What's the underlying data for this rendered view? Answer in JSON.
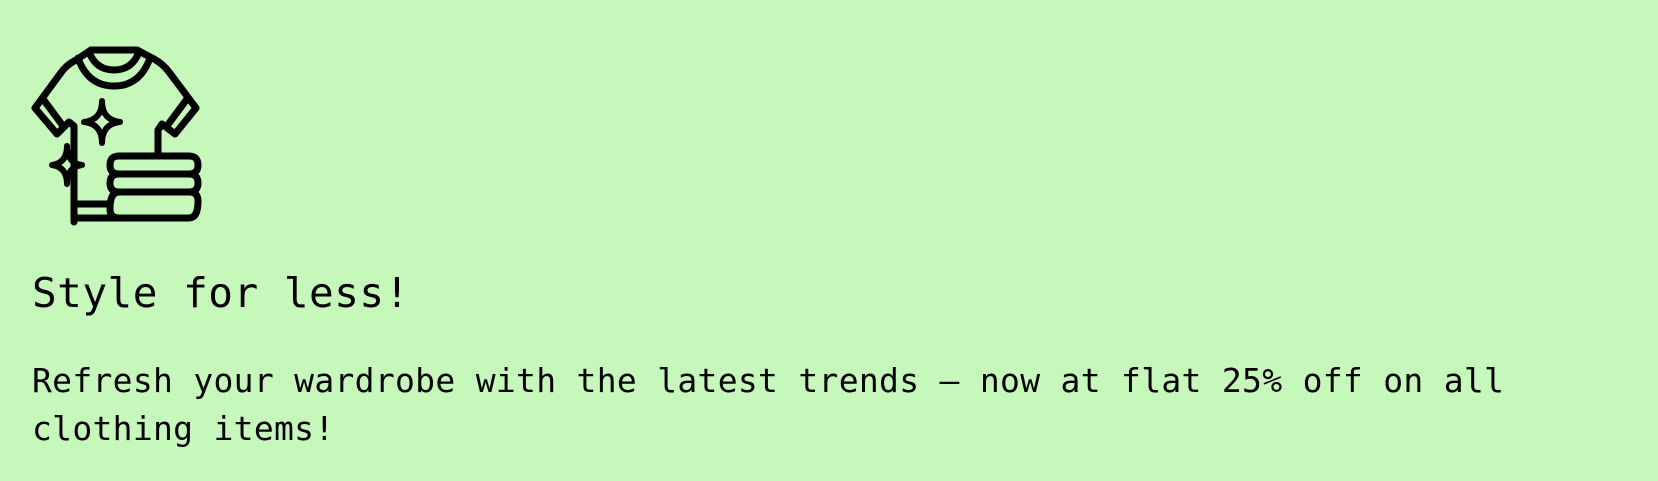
{
  "promo": {
    "icon": "shirt-sparkle-icon",
    "headline": "Style for less!",
    "description": "Refresh your wardrobe with the latest trends — now at flat 25% off on all clothing items!"
  },
  "colors": {
    "background": "#c6f7bb",
    "text": "#000000"
  }
}
